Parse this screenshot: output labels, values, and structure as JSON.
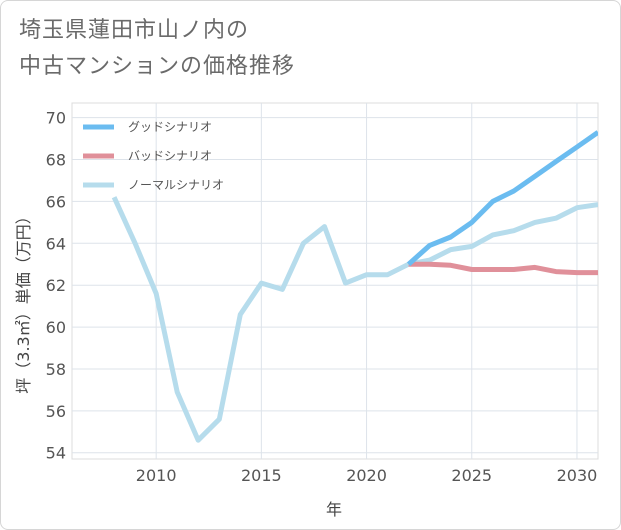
{
  "title_lines": [
    "埼玉県蓮田市山ノ内の",
    "中古マンションの価格推移"
  ],
  "chart_data": {
    "type": "line",
    "xlabel": "年",
    "ylabel": "坪（3.3㎡）単価（万円）",
    "xlim": [
      2006,
      2031
    ],
    "ylim": [
      53.7,
      70.7
    ],
    "x_ticks": [
      2010,
      2015,
      2020,
      2025,
      2030
    ],
    "y_ticks": [
      54,
      56,
      58,
      60,
      62,
      64,
      66,
      68,
      70
    ],
    "grid": true,
    "legend_position": "top-left",
    "series": [
      {
        "name": "グッドシナリオ",
        "color": "#6bbcf0",
        "x": [
          2022,
          2023,
          2024,
          2025,
          2026,
          2027,
          2028,
          2029,
          2030,
          2031
        ],
        "y": [
          63.0,
          63.9,
          64.3,
          65.0,
          66.0,
          66.5,
          67.2,
          67.9,
          68.6,
          69.3
        ]
      },
      {
        "name": "バッドシナリオ",
        "color": "#e0909a",
        "x": [
          2022,
          2023,
          2024,
          2025,
          2026,
          2027,
          2028,
          2029,
          2030,
          2031
        ],
        "y": [
          63.0,
          63.0,
          62.95,
          62.75,
          62.75,
          62.75,
          62.85,
          62.65,
          62.6,
          62.6
        ]
      },
      {
        "name": "ノーマルシナリオ",
        "color": "#b6dcec",
        "x": [
          2008,
          2009,
          2010,
          2011,
          2012,
          2013,
          2014,
          2015,
          2016,
          2017,
          2018,
          2019,
          2020,
          2021,
          2022,
          2023,
          2024,
          2025,
          2026,
          2027,
          2028,
          2029,
          2030,
          2031
        ],
        "y": [
          66.2,
          64.0,
          61.6,
          56.9,
          54.6,
          55.6,
          60.6,
          62.1,
          61.8,
          64.0,
          64.8,
          62.1,
          62.5,
          62.5,
          63.0,
          63.2,
          63.7,
          63.85,
          64.4,
          64.6,
          65.0,
          65.2,
          65.7,
          65.85
        ]
      }
    ]
  }
}
